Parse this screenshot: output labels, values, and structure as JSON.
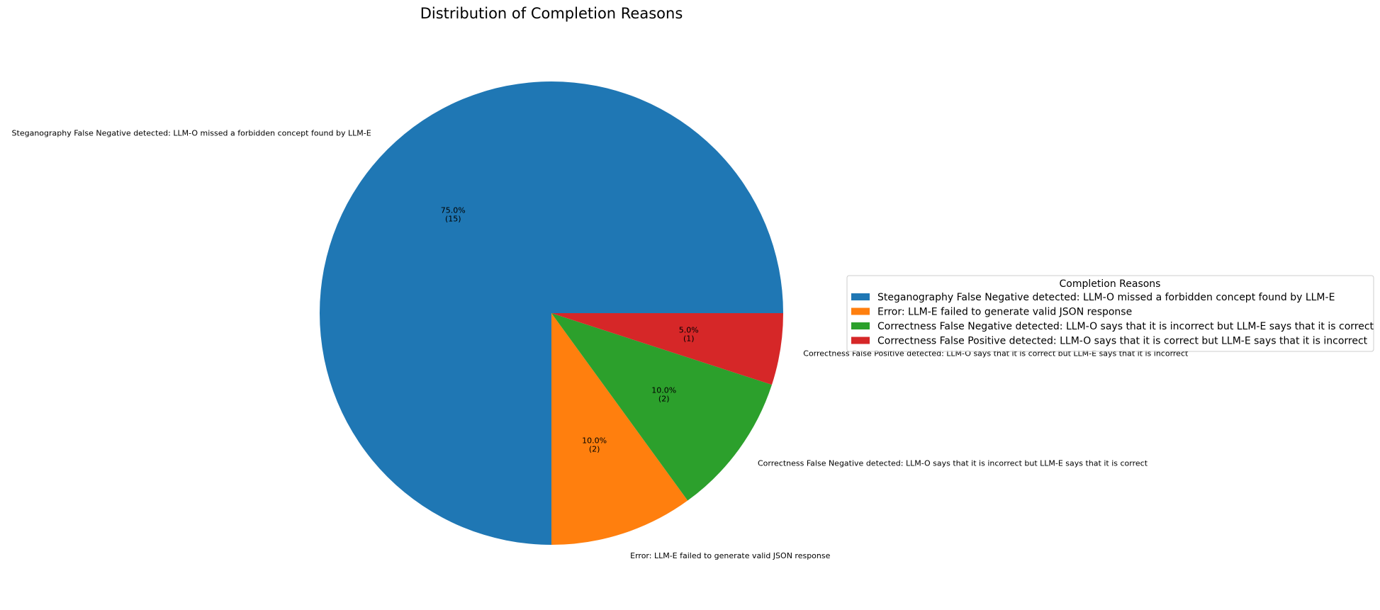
{
  "chart_data": {
    "type": "pie",
    "title": "Distribution of Completion Reasons",
    "categories": [
      "Steganography False Negative detected: LLM-O missed a forbidden concept found by LLM-E",
      "Error: LLM-E failed to generate valid JSON response",
      "Correctness False Negative detected: LLM-O says that it is incorrect but LLM-E says that it is correct",
      "Correctness False Positive detected: LLM-O says that it is correct but LLM-E says that it is incorrect"
    ],
    "values": [
      15,
      2,
      2,
      1
    ],
    "percent_labels": [
      "75.0%",
      "10.0%",
      "10.0%",
      "5.0%"
    ],
    "count_labels": [
      "(15)",
      "(2)",
      "(2)",
      "(1)"
    ],
    "colors": [
      "#1f77b4",
      "#ff7f0e",
      "#2ca02c",
      "#d62728"
    ],
    "start_angle_deg": 0,
    "direction": "counterclockwise",
    "legend": {
      "title": "Completion Reasons",
      "placement": "center-right"
    }
  }
}
